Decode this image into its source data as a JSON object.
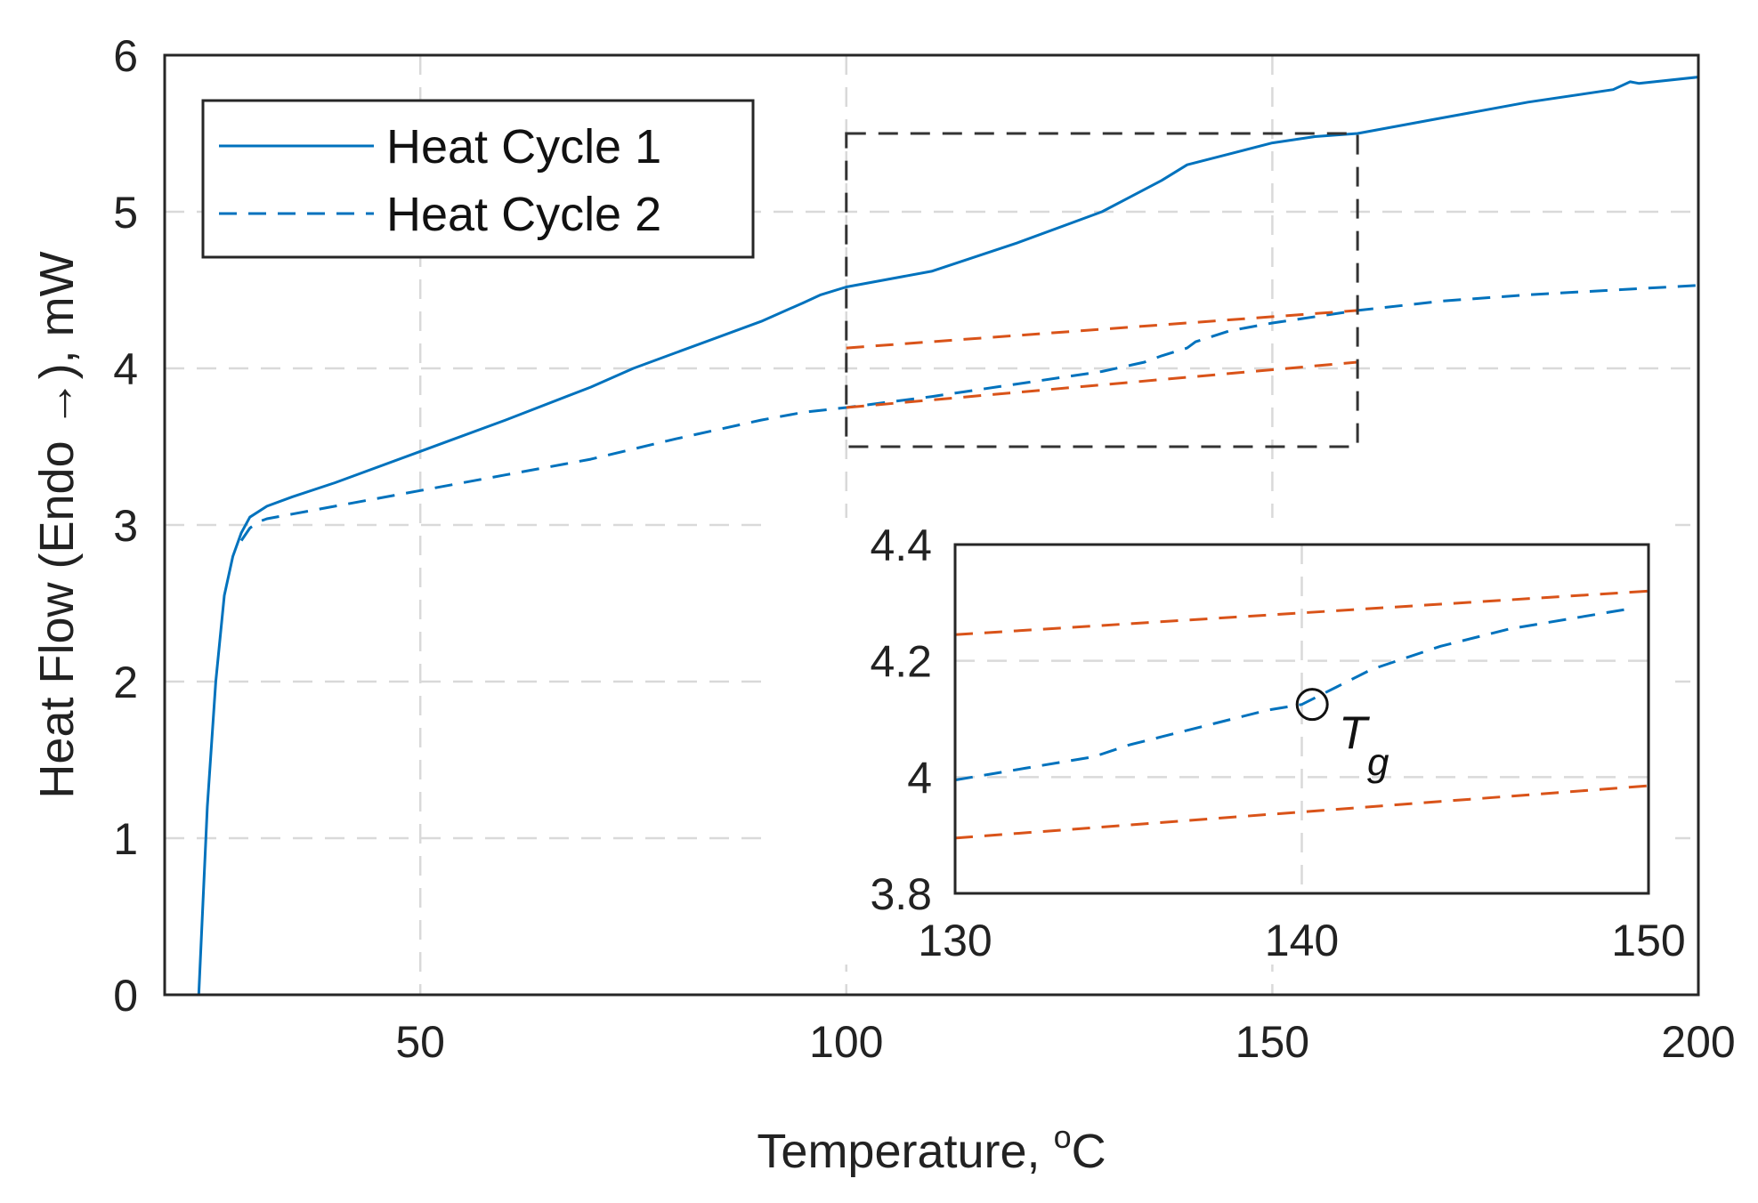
{
  "chart_data": [
    {
      "type": "line",
      "xlabel": "Temperature, °C",
      "xlabel_main": "Temperature, ",
      "xlabel_sup": "o",
      "xlabel_unit": "C",
      "ylabel": "Heat Flow (Endo →), mW",
      "xlim": [
        20,
        200
      ],
      "ylim": [
        0,
        6
      ],
      "xticks": [
        50,
        100,
        150,
        200
      ],
      "yticks": [
        0,
        1,
        2,
        3,
        4,
        5,
        6
      ],
      "grid": true,
      "legend": {
        "position": "top-left",
        "entries": [
          "Heat Cycle 1",
          "Heat Cycle 2"
        ]
      },
      "series": [
        {
          "name": "Heat Cycle 1",
          "style": "solid",
          "color": "#0072BD",
          "x": [
            24,
            25,
            26,
            27,
            28,
            29,
            30,
            32,
            35,
            40,
            50,
            60,
            70,
            75,
            80,
            90,
            95,
            97,
            100,
            110,
            120,
            130,
            137,
            140,
            145,
            150,
            155,
            160,
            170,
            180,
            190,
            192,
            193,
            200
          ],
          "y": [
            0,
            1.2,
            2.0,
            2.55,
            2.8,
            2.95,
            3.05,
            3.12,
            3.18,
            3.27,
            3.47,
            3.67,
            3.88,
            4.0,
            4.1,
            4.3,
            4.42,
            4.47,
            4.52,
            4.62,
            4.8,
            5.0,
            5.2,
            5.3,
            5.37,
            5.44,
            5.48,
            5.5,
            5.6,
            5.7,
            5.78,
            5.83,
            5.82,
            5.86
          ]
        },
        {
          "name": "Heat Cycle 2",
          "style": "dashed",
          "color": "#0072BD",
          "x": [
            29,
            30,
            31,
            32,
            35,
            40,
            50,
            60,
            70,
            80,
            90,
            95,
            100,
            110,
            120,
            130,
            135,
            137,
            140,
            141,
            145,
            150,
            160,
            170,
            180,
            190,
            200
          ],
          "y": [
            2.9,
            2.98,
            3.02,
            3.04,
            3.07,
            3.12,
            3.22,
            3.32,
            3.42,
            3.55,
            3.67,
            3.72,
            3.75,
            3.82,
            3.9,
            3.98,
            4.04,
            4.08,
            4.13,
            4.17,
            4.24,
            4.29,
            4.37,
            4.43,
            4.47,
            4.5,
            4.53
          ]
        },
        {
          "name": "Upper tangent",
          "style": "dashed",
          "color": "#D95319",
          "x": [
            100,
            160
          ],
          "y": [
            4.13,
            4.37
          ]
        },
        {
          "name": "Lower tangent",
          "style": "dashed",
          "color": "#D95319",
          "x": [
            100,
            160
          ],
          "y": [
            3.75,
            4.04
          ]
        }
      ],
      "zoom_region": {
        "x": [
          100,
          160
        ],
        "y": [
          3.5,
          5.5
        ]
      }
    },
    {
      "type": "line",
      "role": "inset",
      "xlim": [
        130,
        150
      ],
      "ylim": [
        3.8,
        4.4
      ],
      "xticks": [
        130,
        140,
        150
      ],
      "yticks": [
        3.8,
        4,
        4.2,
        4.4
      ],
      "ytick_labels": [
        "3.8",
        "4",
        "4.2",
        "4.4"
      ],
      "grid": true,
      "series": [
        {
          "name": "Heat Cycle 2",
          "style": "dashed",
          "color": "#0072BD",
          "x": [
            130,
            131,
            132,
            133,
            134,
            135,
            136,
            137,
            138,
            139,
            140,
            141,
            142,
            143,
            144,
            145,
            146,
            147,
            148,
            149,
            149.5
          ],
          "y": [
            3.995,
            4.005,
            4.015,
            4.025,
            4.035,
            4.055,
            4.07,
            4.085,
            4.1,
            4.115,
            4.125,
            4.155,
            4.185,
            4.205,
            4.225,
            4.24,
            4.255,
            4.265,
            4.275,
            4.285,
            4.29
          ]
        },
        {
          "name": "Upper tangent",
          "style": "dashed",
          "color": "#D95319",
          "x": [
            130,
            150
          ],
          "y": [
            4.245,
            4.32
          ]
        },
        {
          "name": "Lower tangent",
          "style": "dashed",
          "color": "#D95319",
          "x": [
            130,
            150
          ],
          "y": [
            3.895,
            3.985
          ]
        }
      ],
      "marker": {
        "label": "T",
        "subscript": "g",
        "x": 140.3,
        "y": 4.125
      }
    }
  ]
}
